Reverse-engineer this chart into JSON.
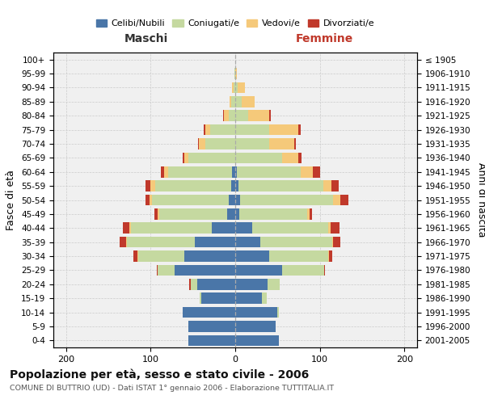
{
  "age_groups": [
    "0-4",
    "5-9",
    "10-14",
    "15-19",
    "20-24",
    "25-29",
    "30-34",
    "35-39",
    "40-44",
    "45-49",
    "50-54",
    "55-59",
    "60-64",
    "65-69",
    "70-74",
    "75-79",
    "80-84",
    "85-89",
    "90-94",
    "95-99",
    "100+"
  ],
  "birth_years": [
    "2001-2005",
    "1996-2000",
    "1991-1995",
    "1986-1990",
    "1981-1985",
    "1976-1980",
    "1971-1975",
    "1966-1970",
    "1961-1965",
    "1956-1960",
    "1951-1955",
    "1946-1950",
    "1941-1945",
    "1936-1940",
    "1931-1935",
    "1926-1930",
    "1921-1925",
    "1916-1920",
    "1911-1915",
    "1906-1910",
    "≤ 1905"
  ],
  "males": {
    "celibe": [
      55,
      55,
      62,
      40,
      45,
      72,
      60,
      48,
      28,
      10,
      8,
      5,
      4,
      0,
      0,
      0,
      0,
      0,
      0,
      0,
      0
    ],
    "coniugato": [
      0,
      0,
      0,
      2,
      8,
      20,
      55,
      80,
      95,
      80,
      90,
      90,
      75,
      55,
      35,
      30,
      8,
      5,
      2,
      1,
      0
    ],
    "vedovo": [
      0,
      0,
      0,
      0,
      0,
      0,
      1,
      1,
      2,
      2,
      3,
      5,
      5,
      5,
      8,
      5,
      5,
      2,
      2,
      0,
      0
    ],
    "divorziato": [
      0,
      0,
      0,
      0,
      1,
      1,
      4,
      8,
      8,
      4,
      5,
      6,
      4,
      2,
      1,
      2,
      1,
      0,
      0,
      0,
      0
    ]
  },
  "females": {
    "nubile": [
      52,
      48,
      50,
      32,
      38,
      55,
      40,
      30,
      20,
      5,
      6,
      4,
      2,
      0,
      0,
      0,
      0,
      0,
      0,
      0,
      0
    ],
    "coniugata": [
      0,
      0,
      2,
      5,
      15,
      50,
      70,
      85,
      90,
      80,
      110,
      100,
      75,
      55,
      40,
      40,
      15,
      8,
      3,
      0,
      0
    ],
    "vedova": [
      0,
      0,
      0,
      0,
      0,
      0,
      1,
      1,
      3,
      3,
      8,
      10,
      15,
      20,
      30,
      35,
      25,
      15,
      8,
      2,
      0
    ],
    "divorziata": [
      0,
      0,
      0,
      0,
      0,
      1,
      4,
      8,
      10,
      3,
      10,
      8,
      8,
      3,
      2,
      2,
      2,
      0,
      0,
      0,
      0
    ]
  },
  "colors": {
    "celibe_nubile": "#4a76a8",
    "coniugato_coniugata": "#c5d9a0",
    "vedovo_vedova": "#f5c97a",
    "divorziato_divorziata": "#c0392b"
  },
  "xlim": [
    -215,
    215
  ],
  "xticks": [
    -200,
    -100,
    0,
    100,
    200
  ],
  "xticklabels": [
    "200",
    "100",
    "0",
    "100",
    "200"
  ],
  "title": "Popolazione per età, sesso e stato civile - 2006",
  "subtitle": "COMUNE DI BUTTRIO (UD) - Dati ISTAT 1° gennaio 2006 - Elaborazione TUTTITALIA.IT",
  "ylabel_left": "Fasce di età",
  "ylabel_right": "Anni di nascita",
  "label_maschi": "Maschi",
  "label_femmine": "Femmine",
  "legend_labels": [
    "Celibi/Nubili",
    "Coniugati/e",
    "Vedovi/e",
    "Divorziati/e"
  ],
  "background_color": "#f0f0f0",
  "grid_color": "#cccccc"
}
